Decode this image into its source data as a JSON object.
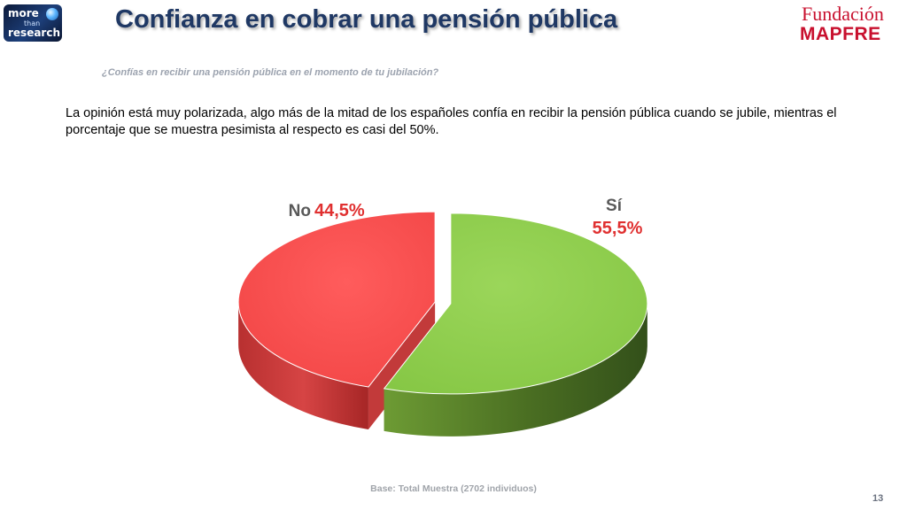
{
  "header": {
    "title": "Confianza en cobrar una pensión pública",
    "logo_left": {
      "line1": "more",
      "line2": "than",
      "line3": "research"
    },
    "logo_right": {
      "line1": "Fundación",
      "line2": "MAPFRE"
    }
  },
  "question": "¿Confías en recibir una pensión pública en el momento de tu jubilación?",
  "description": "La opinión está muy polarizada, algo más de la mitad de los españoles confía en recibir la pensión pública cuando se jubile, mientras el porcentaje que se muestra pesimista al respecto es casi del 50%.",
  "chart_data": {
    "type": "pie",
    "style": "3d-exploded",
    "categories": [
      "Sí",
      "No"
    ],
    "values": [
      55.5,
      44.5
    ],
    "value_labels": [
      "55,5%",
      "44,5%"
    ],
    "colors": [
      "#92d050",
      "#ff5050"
    ],
    "label_colors": {
      "category": "#595959",
      "value": "#e03030"
    }
  },
  "footer": {
    "base_note": "Base: Total Muestra (2702 individuos)",
    "page_number": "13"
  }
}
